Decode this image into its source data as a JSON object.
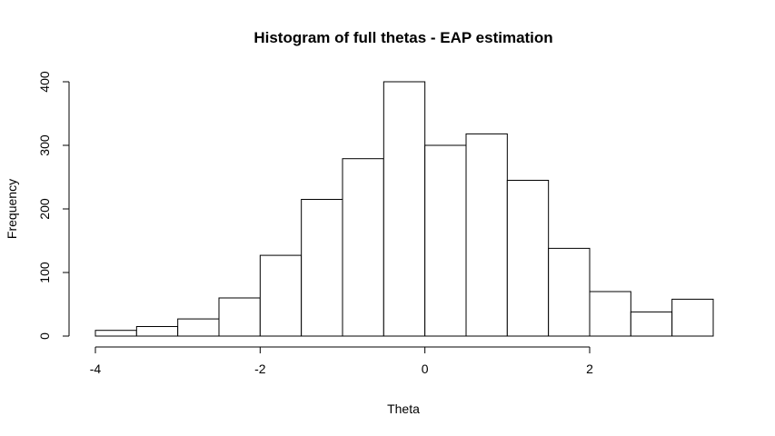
{
  "chart_data": {
    "type": "bar",
    "title": "Histogram of full thetas - EAP estimation",
    "xlabel": "Theta",
    "ylabel": "Frequency",
    "bins": [
      {
        "x0": -4.0,
        "x1": -3.5,
        "count": 9
      },
      {
        "x0": -3.5,
        "x1": -3.0,
        "count": 15
      },
      {
        "x0": -3.0,
        "x1": -2.5,
        "count": 27
      },
      {
        "x0": -2.5,
        "x1": -2.0,
        "count": 60
      },
      {
        "x0": -2.0,
        "x1": -1.5,
        "count": 127
      },
      {
        "x0": -1.5,
        "x1": -1.0,
        "count": 215
      },
      {
        "x0": -1.0,
        "x1": -0.5,
        "count": 279
      },
      {
        "x0": -0.5,
        "x1": 0.0,
        "count": 400
      },
      {
        "x0": 0.0,
        "x1": 0.5,
        "count": 300
      },
      {
        "x0": 0.5,
        "x1": 1.0,
        "count": 318
      },
      {
        "x0": 1.0,
        "x1": 1.5,
        "count": 245
      },
      {
        "x0": 1.5,
        "x1": 2.0,
        "count": 138
      },
      {
        "x0": 2.0,
        "x1": 2.5,
        "count": 70
      },
      {
        "x0": 2.5,
        "x1": 3.0,
        "count": 38
      },
      {
        "x0": 3.0,
        "x1": 3.5,
        "count": 58
      }
    ],
    "xticks": [
      -4,
      -2,
      0,
      2
    ],
    "xtick_labels": [
      "-4",
      "-2",
      "0",
      "2"
    ],
    "yticks": [
      0,
      100,
      200,
      300,
      400
    ],
    "ytick_labels": [
      "0",
      "100",
      "200",
      "300",
      "400"
    ],
    "xlim": [
      -4,
      3.5
    ],
    "ylim": [
      0,
      400
    ],
    "grid": false,
    "fill_color": "#ffffff",
    "stroke_color": "#000000"
  }
}
